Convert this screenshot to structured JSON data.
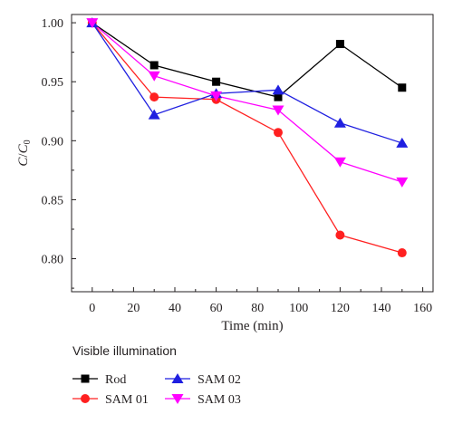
{
  "chart_data": {
    "type": "line",
    "xlabel": "Time (min)",
    "ylabel_main": "C",
    "ylabel_sep": "/",
    "ylabel_den": "C",
    "ylabel_sub": "0",
    "xlim": [
      -10,
      165
    ],
    "ylim": [
      0.772,
      1.007
    ],
    "xticks": [
      0,
      20,
      40,
      60,
      80,
      100,
      120,
      140,
      160
    ],
    "yticks": [
      0.8,
      0.85,
      0.9,
      0.95,
      1.0
    ],
    "ytick_labels": [
      "0.80",
      "0.85",
      "0.90",
      "0.95",
      "1.00"
    ],
    "x": [
      0,
      30,
      60,
      90,
      120,
      150
    ],
    "legend_title": "Visible illumination",
    "legend_placement": "below",
    "grid": false,
    "series": [
      {
        "name": "Rod",
        "marker": "square",
        "color": "#000000",
        "values": [
          1.0,
          0.964,
          0.95,
          0.937,
          0.982,
          0.945
        ]
      },
      {
        "name": "SAM 01",
        "marker": "circle",
        "color": "#ff2020",
        "values": [
          1.0,
          0.937,
          0.935,
          0.907,
          0.82,
          0.805
        ]
      },
      {
        "name": "SAM 02",
        "marker": "triangle-up",
        "color": "#1f1fe0",
        "values": [
          1.0,
          0.922,
          0.94,
          0.943,
          0.915,
          0.898
        ]
      },
      {
        "name": "SAM 03",
        "marker": "triangle-down",
        "color": "#ff00ff",
        "values": [
          1.0,
          0.955,
          0.938,
          0.926,
          0.882,
          0.865
        ]
      }
    ]
  }
}
